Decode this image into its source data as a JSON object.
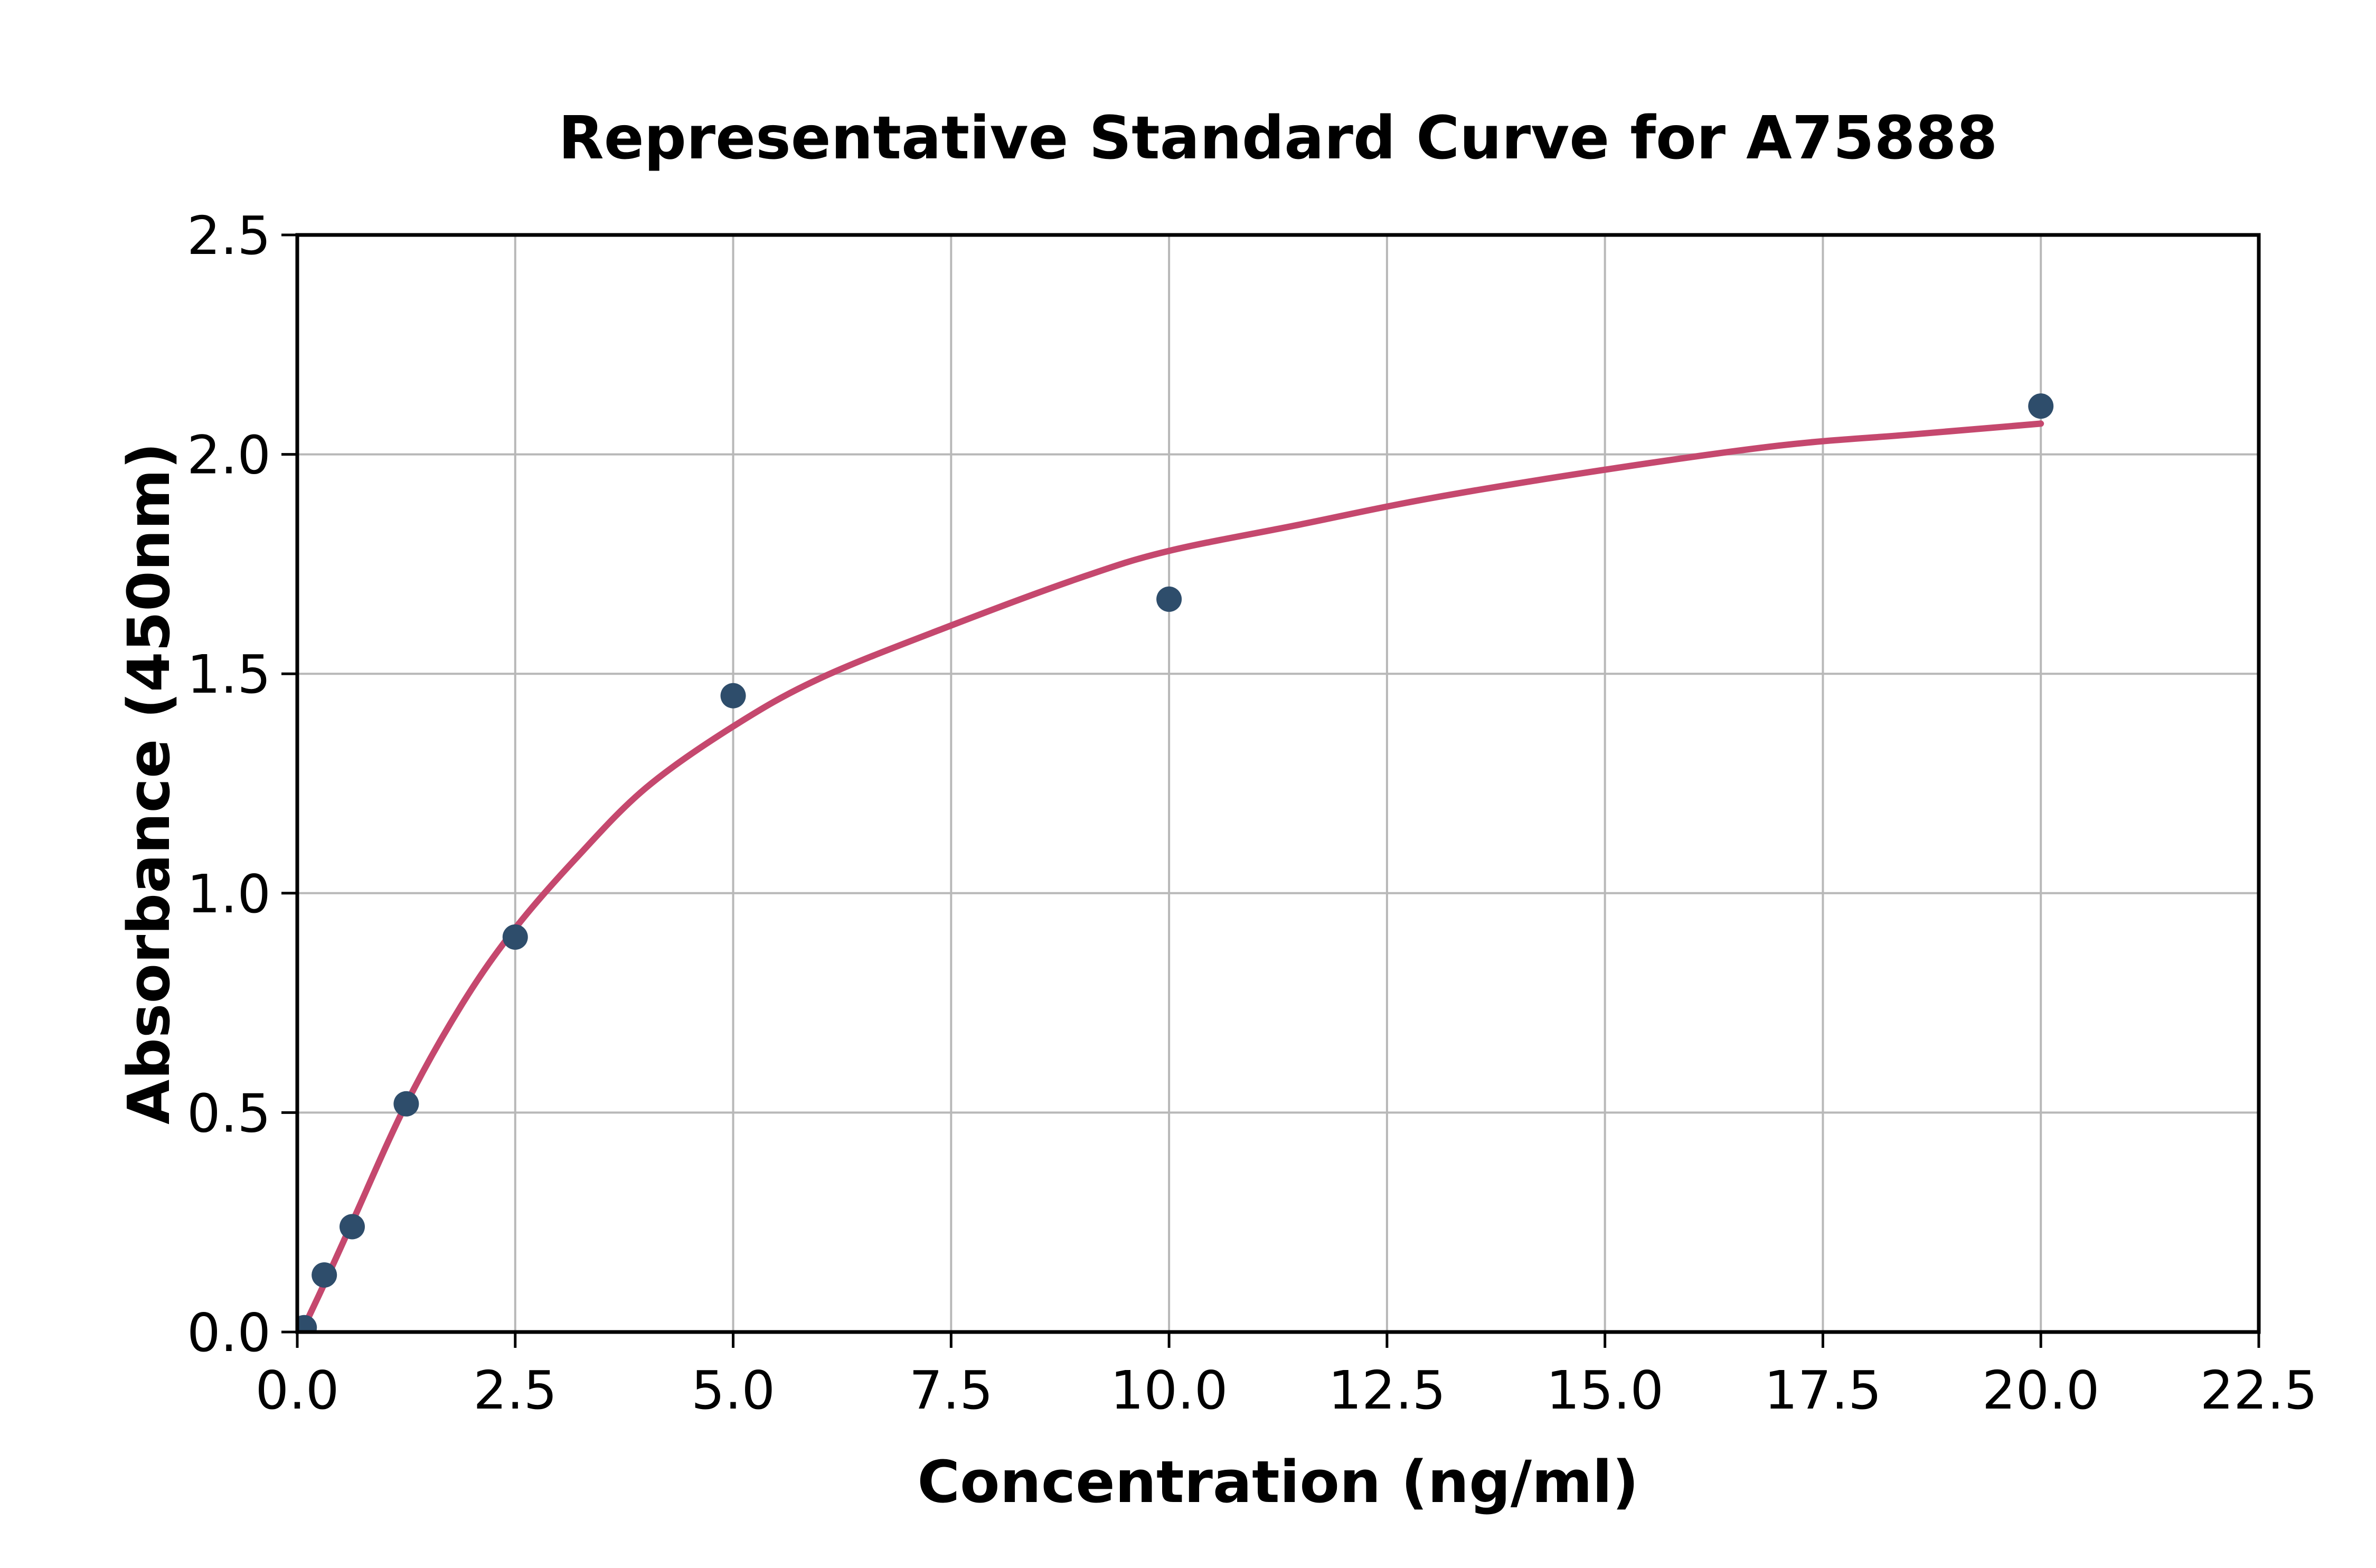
{
  "chart_data": {
    "type": "scatter",
    "title": "Representative Standard Curve for A75888",
    "xlabel": "Concentration (ng/ml)",
    "ylabel": "Absorbance (450nm)",
    "xlim": [
      0,
      22.5
    ],
    "ylim": [
      0,
      2.5
    ],
    "grid": true,
    "legend": "none",
    "x_ticks": [
      0,
      2.5,
      5,
      7.5,
      10,
      12.5,
      15,
      17.5,
      20,
      22.5
    ],
    "x_tick_labels": [
      "0.0",
      "2.5",
      "5.0",
      "7.5",
      "10.0",
      "12.5",
      "15.0",
      "17.5",
      "20.0",
      "22.5"
    ],
    "y_ticks": [
      0,
      0.5,
      1,
      1.5,
      2,
      2.5
    ],
    "y_tick_labels": [
      "0.0",
      "0.5",
      "1.0",
      "1.5",
      "2.0",
      "2.5"
    ],
    "series": [
      {
        "name": "standard-points",
        "type": "scatter",
        "x": [
          0.08,
          0.31,
          0.63,
          1.25,
          2.5,
          5,
          10,
          20
        ],
        "y": [
          0.01,
          0.13,
          0.24,
          0.52,
          0.9,
          1.45,
          1.67,
          2.11
        ]
      },
      {
        "name": "fitted-curve",
        "type": "line",
        "x": [
          0.05,
          0.31,
          0.63,
          1.25,
          1.9,
          2.5,
          3.2,
          4.0,
          5.0,
          6.0,
          7.5,
          9.0,
          10.0,
          11.5,
          13.0,
          15.0,
          17.0,
          18.5,
          20.0
        ],
        "y": [
          0.0,
          0.11,
          0.25,
          0.52,
          0.75,
          0.92,
          1.08,
          1.24,
          1.38,
          1.49,
          1.61,
          1.72,
          1.78,
          1.84,
          1.9,
          1.965,
          2.02,
          2.045,
          2.07
        ]
      }
    ],
    "colors": {
      "point": "#2e4d6b",
      "curve": "#c5486e",
      "grid": "#b8b8b8",
      "axis": "#000000",
      "text": "#000000",
      "background": "#ffffff"
    }
  }
}
